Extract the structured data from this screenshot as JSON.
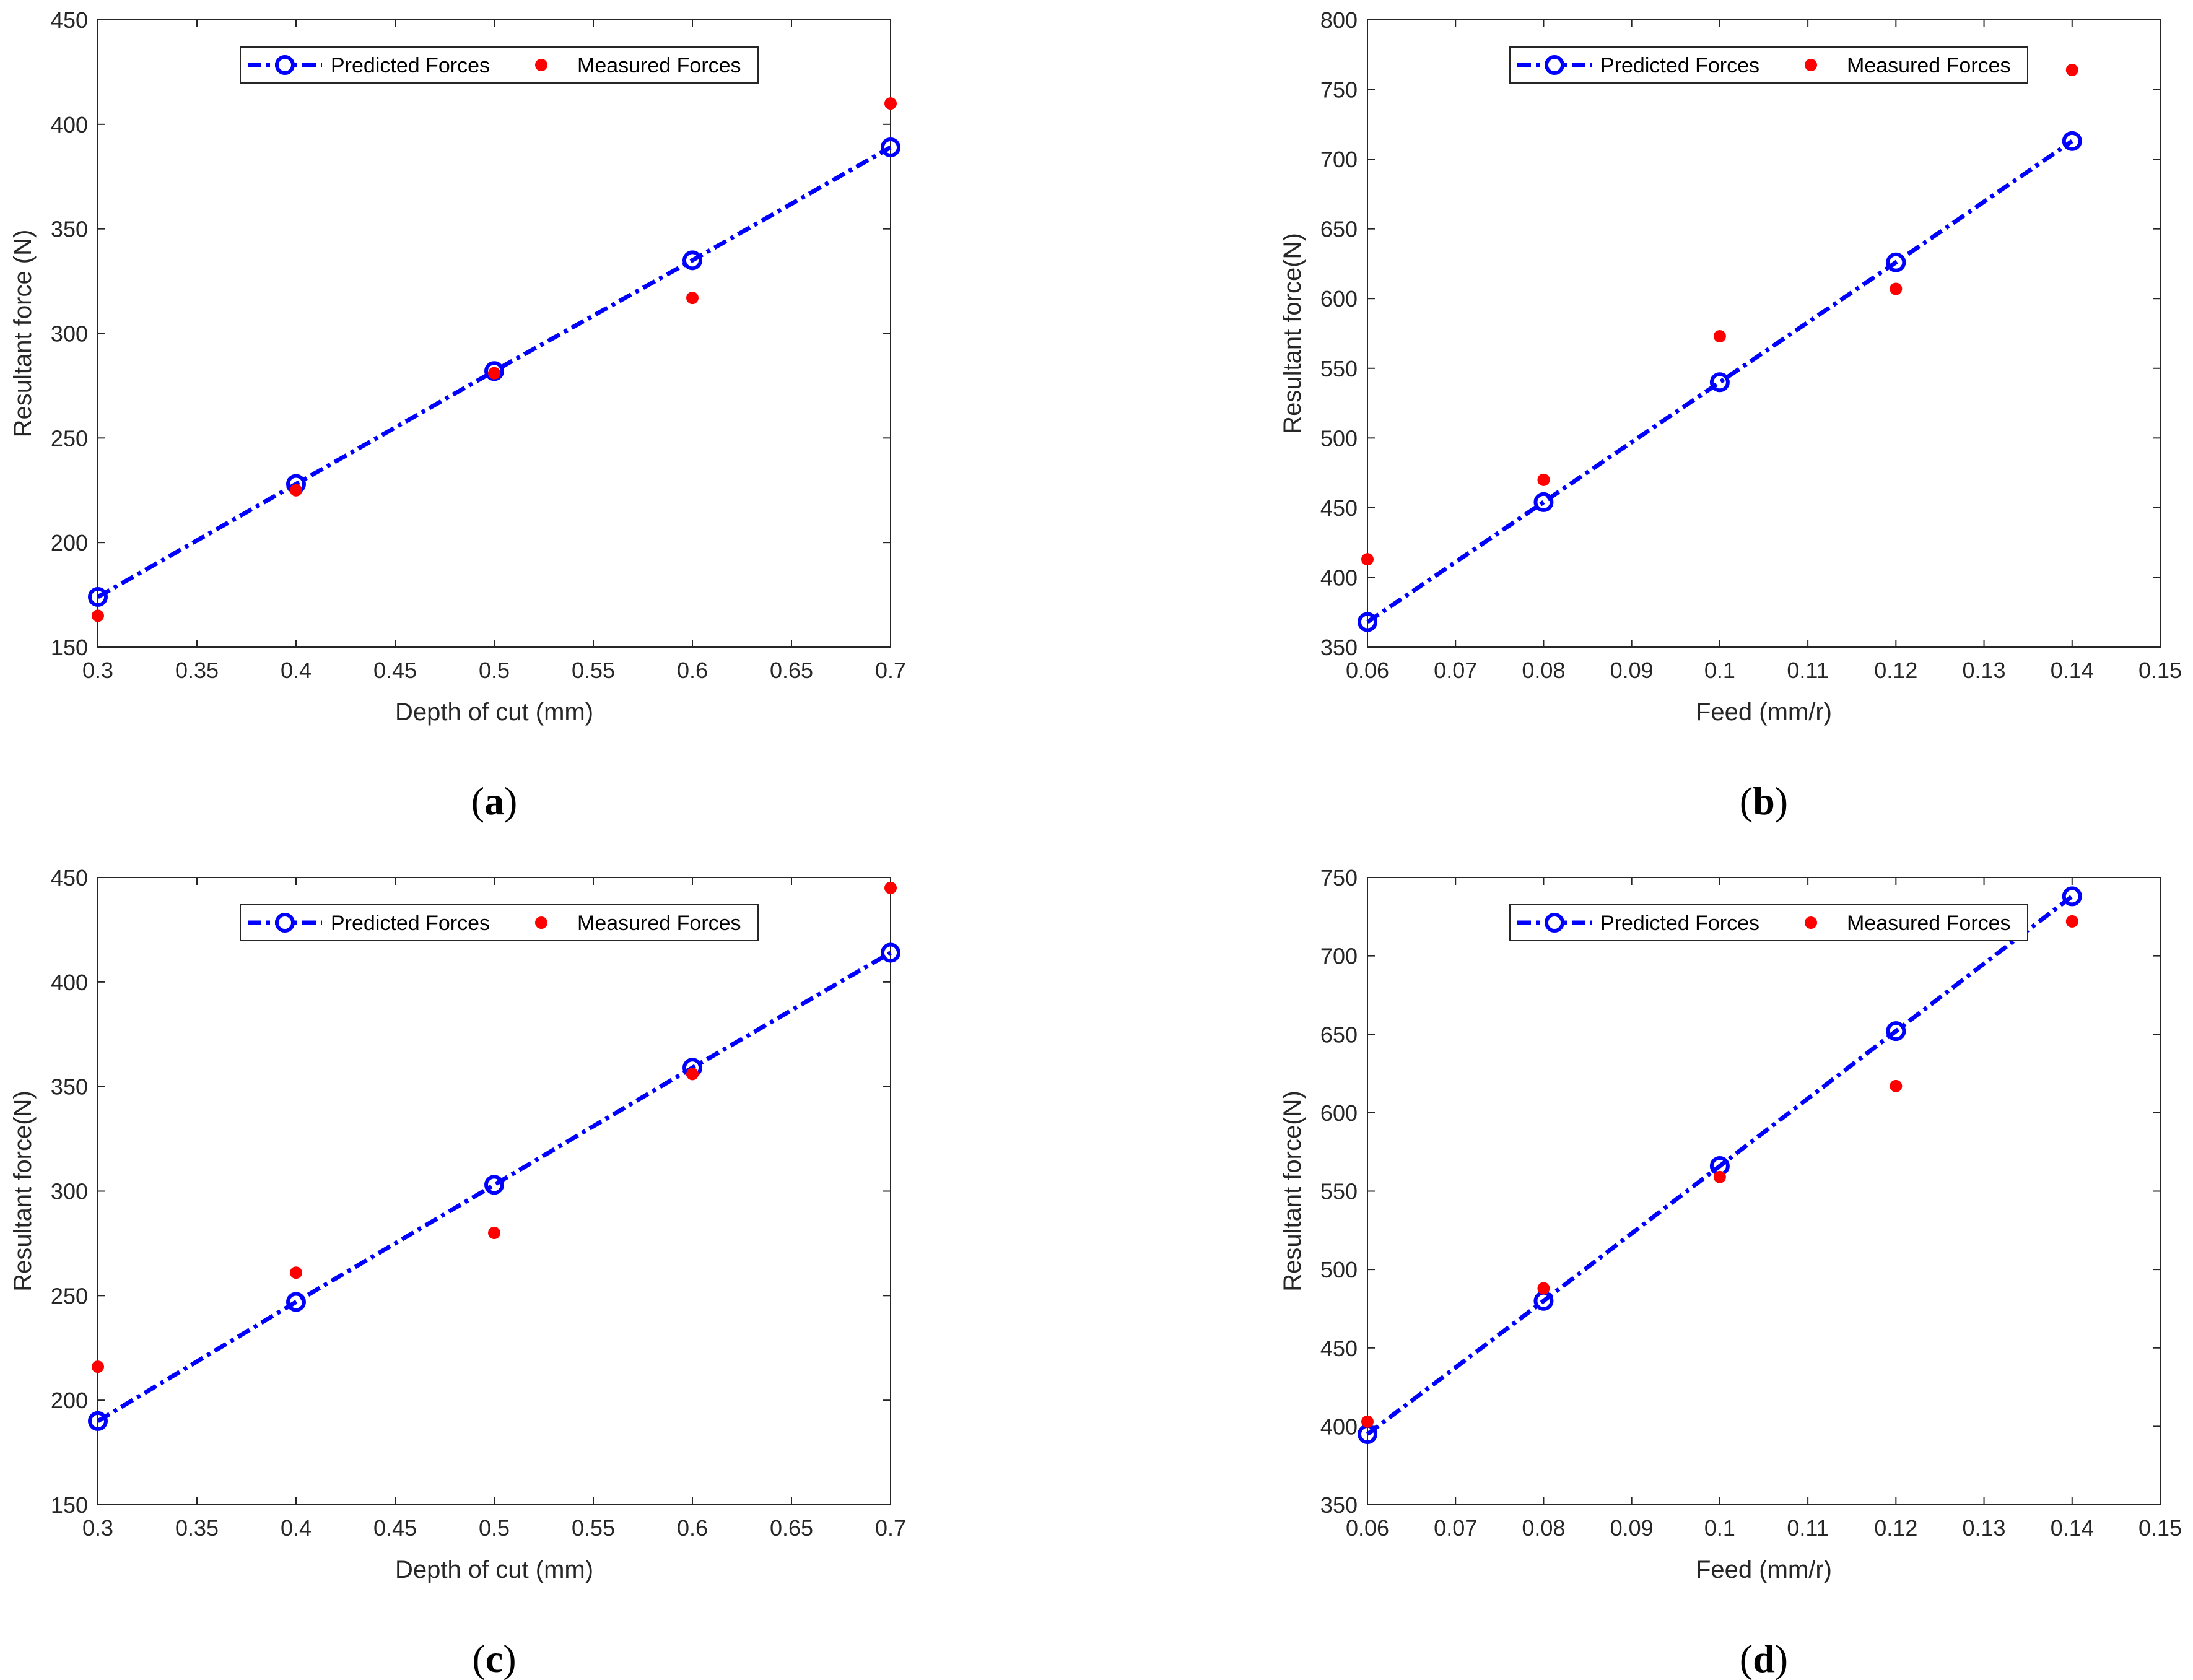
{
  "figure": {
    "colors": {
      "predicted": "#0000ff",
      "measured": "#ff0000",
      "axis": "#262626"
    }
  },
  "chart_data": [
    {
      "type": "line",
      "panel_label": "a",
      "xlabel": "Depth of cut (mm)",
      "ylabel": "Resultant force (N)",
      "xlim": [
        0.3,
        0.7
      ],
      "ylim": [
        150,
        450
      ],
      "xticks": [
        "0.3",
        "0.35",
        "0.4",
        "0.45",
        "0.5",
        "0.55",
        "0.6",
        "0.65",
        "0.7"
      ],
      "yticks": [
        "150",
        "200",
        "250",
        "300",
        "350",
        "400",
        "450"
      ],
      "legend": {
        "position": "top-center",
        "predicted_label": "Predicted Forces",
        "measured_label": "Measured Forces"
      },
      "series": [
        {
          "name": "Predicted Forces",
          "style": "dash-dot line with circle markers",
          "color": "#0000ff",
          "x": [
            0.3,
            0.4,
            0.5,
            0.6,
            0.7
          ],
          "y": [
            174,
            228,
            282,
            335,
            389
          ]
        },
        {
          "name": "Measured Forces",
          "style": "filled dots",
          "color": "#ff0000",
          "x": [
            0.3,
            0.4,
            0.5,
            0.6,
            0.7
          ],
          "y": [
            165,
            225,
            281,
            317,
            410
          ]
        }
      ]
    },
    {
      "type": "line",
      "panel_label": "b",
      "xlabel": "Feed (mm/r)",
      "ylabel": "Resultant force(N)",
      "xlim": [
        0.06,
        0.15
      ],
      "ylim": [
        350,
        800
      ],
      "xticks": [
        "0.06",
        "0.07",
        "0.08",
        "0.09",
        "0.1",
        "0.11",
        "0.12",
        "0.13",
        "0.14",
        "0.15"
      ],
      "yticks": [
        "350",
        "400",
        "450",
        "500",
        "550",
        "600",
        "650",
        "700",
        "750",
        "800"
      ],
      "legend": {
        "position": "top-center",
        "predicted_label": "Predicted Forces",
        "measured_label": "Measured Forces"
      },
      "series": [
        {
          "name": "Predicted Forces",
          "style": "dash-dot line with circle markers",
          "color": "#0000ff",
          "x": [
            0.06,
            0.08,
            0.1,
            0.12,
            0.14
          ],
          "y": [
            368,
            454,
            540,
            626,
            713
          ]
        },
        {
          "name": "Measured Forces",
          "style": "filled dots",
          "color": "#ff0000",
          "x": [
            0.06,
            0.08,
            0.1,
            0.12,
            0.14
          ],
          "y": [
            413,
            470,
            573,
            607,
            764
          ]
        }
      ]
    },
    {
      "type": "line",
      "panel_label": "c",
      "xlabel": "Depth of cut (mm)",
      "ylabel": "Resultant force(N)",
      "xlim": [
        0.3,
        0.7
      ],
      "ylim": [
        150,
        450
      ],
      "xticks": [
        "0.3",
        "0.35",
        "0.4",
        "0.45",
        "0.5",
        "0.55",
        "0.6",
        "0.65",
        "0.7"
      ],
      "yticks": [
        "150",
        "200",
        "250",
        "300",
        "350",
        "400",
        "450"
      ],
      "legend": {
        "position": "top-center",
        "predicted_label": "Predicted Forces",
        "measured_label": "Measured Forces"
      },
      "series": [
        {
          "name": "Predicted Forces",
          "style": "dash-dot line with circle markers",
          "color": "#0000ff",
          "x": [
            0.3,
            0.4,
            0.5,
            0.6,
            0.7
          ],
          "y": [
            190,
            247,
            303,
            359,
            414
          ]
        },
        {
          "name": "Measured Forces",
          "style": "filled dots",
          "color": "#ff0000",
          "x": [
            0.3,
            0.4,
            0.5,
            0.6,
            0.7
          ],
          "y": [
            216,
            261,
            280,
            356,
            445
          ]
        }
      ]
    },
    {
      "type": "line",
      "panel_label": "d",
      "xlabel": "Feed (mm/r)",
      "ylabel": "Resultant force(N)",
      "xlim": [
        0.06,
        0.15
      ],
      "ylim": [
        350,
        750
      ],
      "xticks": [
        "0.06",
        "0.07",
        "0.08",
        "0.09",
        "0.1",
        "0.11",
        "0.12",
        "0.13",
        "0.14",
        "0.15"
      ],
      "yticks": [
        "350",
        "400",
        "450",
        "500",
        "550",
        "600",
        "650",
        "700",
        "750"
      ],
      "legend": {
        "position": "top-center",
        "predicted_label": "Predicted Forces",
        "measured_label": "Measured Forces"
      },
      "series": [
        {
          "name": "Predicted Forces",
          "style": "dash-dot line with circle markers",
          "color": "#0000ff",
          "x": [
            0.06,
            0.08,
            0.1,
            0.12,
            0.14
          ],
          "y": [
            395,
            480,
            566,
            652,
            738
          ]
        },
        {
          "name": "Measured Forces",
          "style": "filled dots",
          "color": "#ff0000",
          "x": [
            0.06,
            0.08,
            0.1,
            0.12,
            0.14
          ],
          "y": [
            403,
            488,
            559,
            617,
            722
          ]
        }
      ]
    }
  ]
}
